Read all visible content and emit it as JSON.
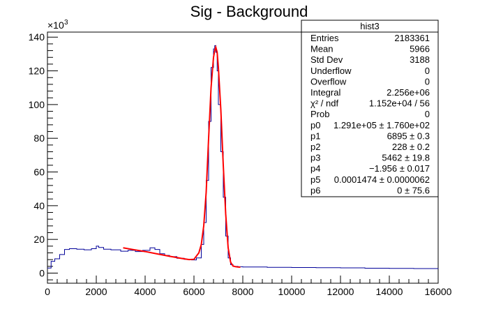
{
  "chart_data": {
    "type": "line",
    "title": "Sig - Background",
    "xlabel": "",
    "ylabel": "",
    "xlim": [
      0,
      16000
    ],
    "ylim": [
      -6000,
      143000
    ],
    "y_exponent_label": "×10",
    "y_exponent_power": "3",
    "x_ticks": [
      0,
      2000,
      4000,
      6000,
      8000,
      10000,
      12000,
      14000,
      16000
    ],
    "y_ticks": [
      0,
      20,
      40,
      60,
      80,
      100,
      120,
      140
    ],
    "grid": false,
    "legend_position": "top-right",
    "series": [
      {
        "kind": "histogram",
        "color": "#000099",
        "x": [
          0,
          150,
          300,
          500,
          700,
          900,
          1200,
          1500,
          1800,
          2000,
          2100,
          2300,
          2600,
          3000,
          3300,
          3600,
          3900,
          4200,
          4400,
          4600,
          4800,
          5000,
          5300,
          5600,
          5900,
          6100,
          6300,
          6400,
          6500,
          6600,
          6700,
          6800,
          6850,
          6900,
          6950,
          7000,
          7100,
          7200,
          7300,
          7400,
          7500,
          7600,
          7800,
          8000,
          9000,
          10000,
          11000,
          12000,
          13000,
          14000,
          15000,
          16000
        ],
        "y": [
          3000,
          7000,
          8500,
          11000,
          14000,
          14500,
          14200,
          13800,
          14500,
          16000,
          15200,
          14200,
          13800,
          13000,
          13500,
          12800,
          13500,
          15000,
          14000,
          11500,
          10500,
          9800,
          8800,
          8200,
          7800,
          9000,
          17000,
          30000,
          55000,
          90000,
          122000,
          133000,
          135000,
          131000,
          120000,
          100000,
          72000,
          45000,
          22000,
          9000,
          5000,
          4000,
          3800,
          3600,
          3400,
          3300,
          3200,
          3100,
          2900,
          2800,
          2700,
          2600
        ]
      },
      {
        "kind": "fit",
        "color": "#ff0000",
        "x": [
          3100,
          3500,
          4000,
          4500,
          5000,
          5500,
          5800,
          6000,
          6200,
          6300,
          6400,
          6500,
          6600,
          6700,
          6800,
          6850,
          6895,
          6950,
          7000,
          7100,
          7200,
          7300,
          7400,
          7500,
          7600,
          7700,
          7800,
          7900
        ],
        "y": [
          15000,
          14000,
          12800,
          11400,
          10000,
          8700,
          8000,
          8200,
          12000,
          17000,
          28000,
          48000,
          80000,
          110000,
          128000,
          132000,
          134000,
          131000,
          122000,
          97000,
          64000,
          35000,
          15000,
          6500,
          4200,
          3800,
          3600,
          3500
        ]
      }
    ],
    "stats_box": {
      "title": "hist3",
      "rows": [
        {
          "label": "Entries",
          "value": "2183361"
        },
        {
          "label": "Mean",
          "value": "5966"
        },
        {
          "label": "Std Dev",
          "value": "3188"
        },
        {
          "label": "Underflow",
          "value": "0"
        },
        {
          "label": "Overflow",
          "value": "0"
        },
        {
          "label": "Integral",
          "value": "2.256e+06"
        },
        {
          "label": "χ² / ndf",
          "value": "1.152e+04 / 56"
        },
        {
          "label": "Prob",
          "value": "0"
        },
        {
          "label": "p0",
          "value": "1.291e+05 ± 1.760e+02"
        },
        {
          "label": "p1",
          "value": "6895 ± 0.3"
        },
        {
          "label": "p2",
          "value": "228 ± 0.2"
        },
        {
          "label": "p3",
          "value": "5462 ± 19.8"
        },
        {
          "label": "p4",
          "value": "−1.956 ± 0.017"
        },
        {
          "label": "p5",
          "value": "0.0001474 ± 0.0000062"
        },
        {
          "label": "p6",
          "value": "0 ± 75.6"
        }
      ]
    }
  }
}
